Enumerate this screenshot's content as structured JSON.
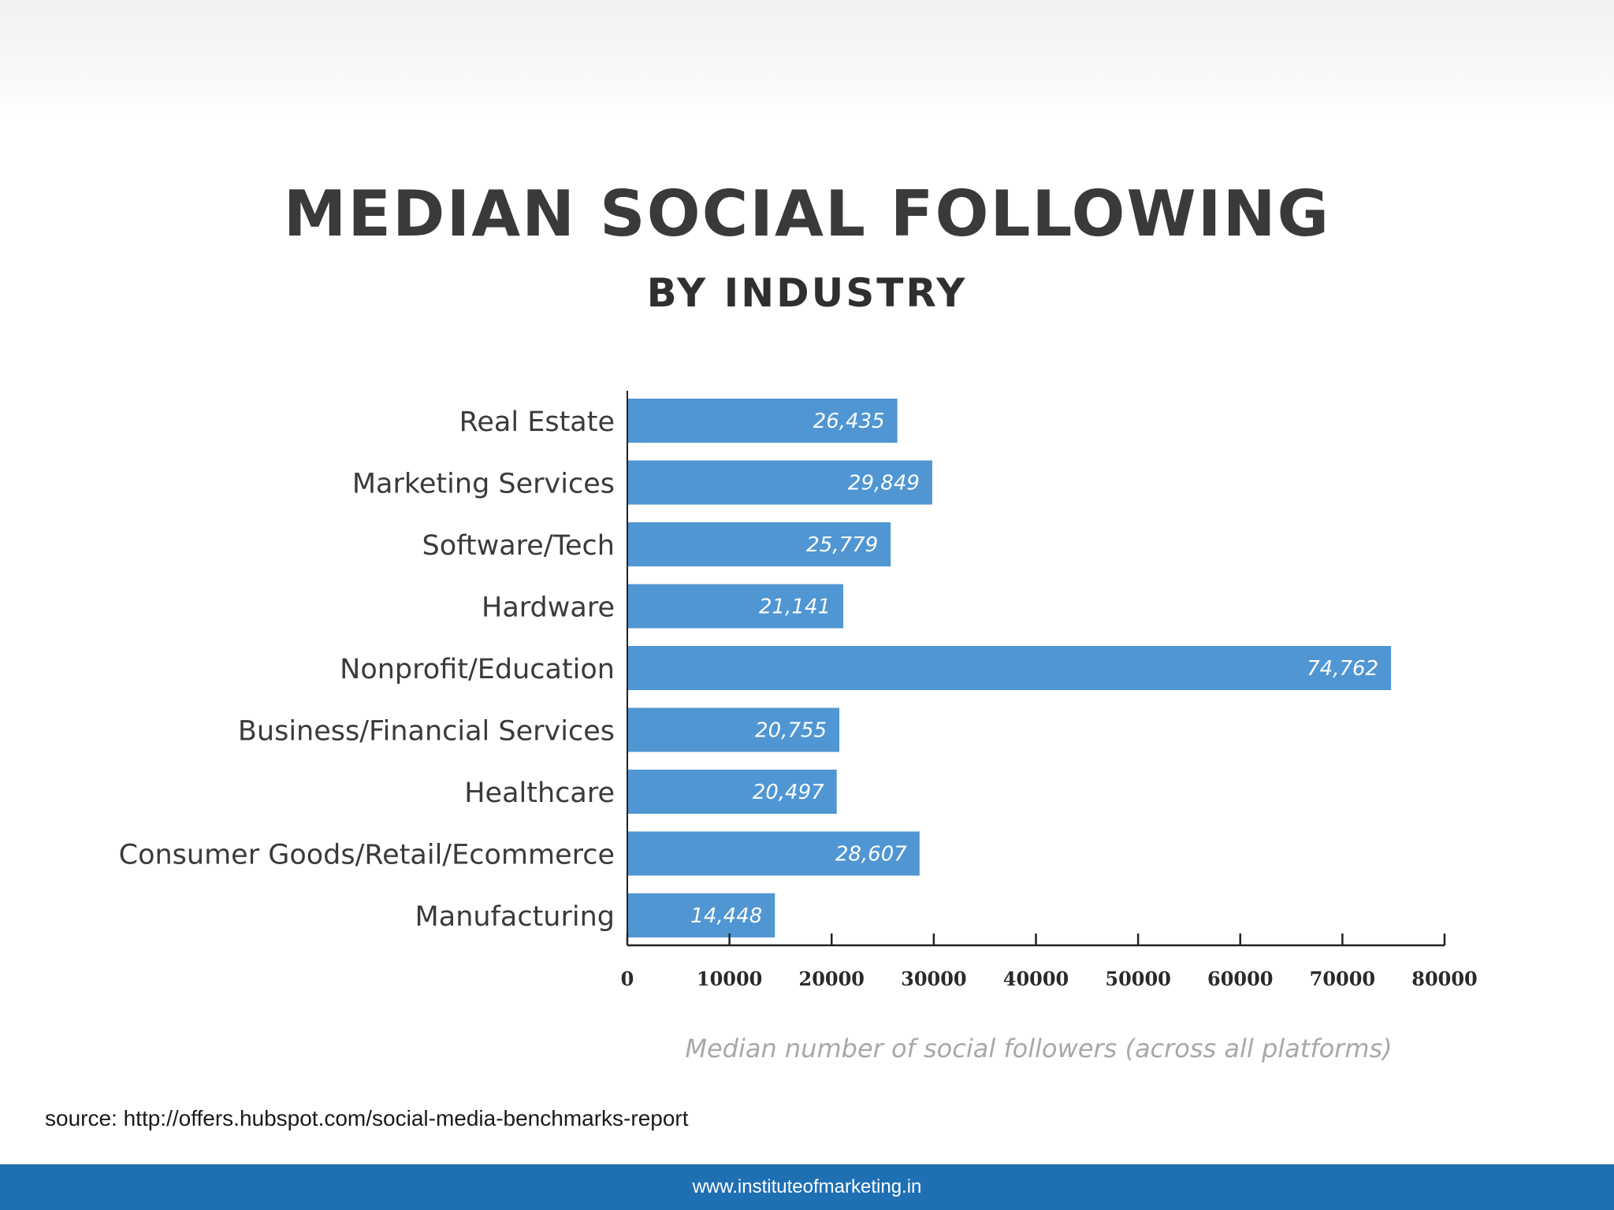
{
  "chart_data": {
    "type": "bar",
    "orientation": "horizontal",
    "title": "MEDIAN SOCIAL FOLLOWING",
    "subtitle": "BY INDUSTRY",
    "categories": [
      "Real Estate",
      "Marketing Services",
      "Software/Tech",
      "Hardware",
      "Nonprofit/Education",
      "Business/Financial Services",
      "Healthcare",
      "Consumer Goods/Retail/Ecommerce",
      "Manufacturing"
    ],
    "values": [
      26435,
      29849,
      25779,
      21141,
      74762,
      20755,
      20497,
      28607,
      14448
    ],
    "value_labels": [
      "26,435",
      "29,849",
      "25,779",
      "21,141",
      "74,762",
      "20,755",
      "20,497",
      "28,607",
      "14,448"
    ],
    "xlabel": "Median number of social followers (across all platforms)",
    "ylabel": "",
    "xlim": [
      0,
      80000
    ],
    "xticks": [
      0,
      10000,
      20000,
      30000,
      40000,
      50000,
      60000,
      70000,
      80000
    ],
    "xtick_labels": [
      "0",
      "10000",
      "20000",
      "30000",
      "40000",
      "50000",
      "60000",
      "70000",
      "80000"
    ],
    "grid": false,
    "legend": "none",
    "bar_color": "#5096d3"
  },
  "source": "source: http://offers.hubspot.com/social-media-benchmarks-report",
  "footer": {
    "url": "www.instituteofmarketing.in",
    "color": "#1f6fb3"
  }
}
